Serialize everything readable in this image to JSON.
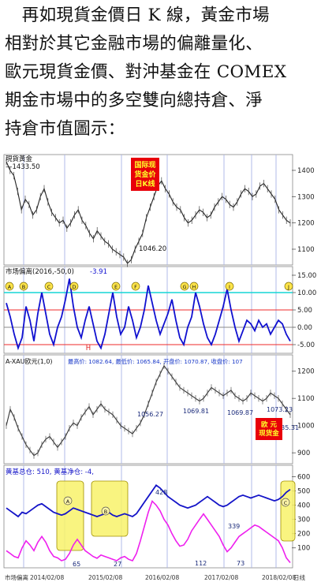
{
  "text": {
    "lines": [
      "　再如現貨金價日 K 線，黃金市場",
      "相對於其它金融市場的偏離量化、",
      "歐元現貨金價、對沖基金在 COMEX",
      "期金市場中的多空雙向總持倉、淨",
      "持倉市值圖示："
    ]
  },
  "chart_data": [
    {
      "type": "line",
      "title": "現貨黃金",
      "badge": "国际现货金价日K线",
      "badge_lines": [
        "国际现",
        "货金价",
        "日K线"
      ],
      "ylim": [
        1040,
        1460
      ],
      "yticks": [
        1400,
        1300,
        1200,
        1100
      ],
      "annotations": [
        {
          "label": "1433.50"
        },
        {
          "label": "1046.20"
        }
      ],
      "values": [
        1433,
        1400,
        1380,
        1320,
        1250,
        1290,
        1270,
        1230,
        1250,
        1300,
        1330,
        1280,
        1240,
        1220,
        1200,
        1210,
        1180,
        1200,
        1230,
        1250,
        1210,
        1190,
        1160,
        1140,
        1170,
        1150,
        1130,
        1120,
        1100,
        1090,
        1080,
        1070,
        1046,
        1060,
        1100,
        1130,
        1160,
        1220,
        1260,
        1300,
        1340,
        1360,
        1330,
        1310,
        1280,
        1260,
        1250,
        1220,
        1200,
        1210,
        1230,
        1250,
        1240,
        1220,
        1230,
        1260,
        1280,
        1300,
        1290,
        1270,
        1260,
        1280,
        1310,
        1330,
        1320,
        1300,
        1310,
        1340,
        1350,
        1330,
        1310,
        1290,
        1250,
        1230,
        1210,
        1200
      ]
    },
    {
      "type": "line",
      "title": "市场偏离(2016,-50,0)",
      "value_label": "-3.91",
      "ylim": [
        -7.5,
        17.5
      ],
      "yticks": [
        15.0,
        10.0,
        5.0,
        0.0,
        -5.0
      ],
      "ytick_labels": [
        "15.00",
        "10.00",
        "5.00",
        "0.00",
        "-5.00"
      ],
      "markers": [
        "A",
        "B",
        "C",
        "D",
        "E",
        "F",
        "G",
        "H",
        "I",
        "J"
      ],
      "bottom_marker": "H",
      "values": [
        7,
        3,
        -2,
        -6,
        -3,
        6,
        2,
        -4,
        4,
        10,
        4,
        -2,
        -5,
        0,
        3,
        8,
        14,
        6,
        0,
        -3,
        2,
        6,
        1,
        -4,
        -6,
        -2,
        4,
        10,
        3,
        -2,
        0,
        6,
        2,
        -3,
        0,
        5,
        12,
        7,
        2,
        -2,
        1,
        4,
        8,
        2,
        -3,
        -5,
        0,
        3,
        10,
        6,
        1,
        -3,
        -5,
        -2,
        2,
        6,
        11,
        5,
        0,
        -4,
        -1,
        2,
        1,
        -1,
        2,
        0,
        1,
        -2,
        0,
        2,
        1,
        -2,
        -4
      ]
    },
    {
      "type": "line",
      "title": "A-XAU欧元(1,0)",
      "ohlc_label": "最高价: 1082.64, 最低价: 1065.84, 开盘价: 1070.87, 收盘价: 107",
      "badge": "欧元现货金",
      "badge_lines": [
        "欧  元",
        "现货金"
      ],
      "ylim": [
        860,
        1260
      ],
      "yticks": [
        1200,
        1100,
        1000,
        900
      ],
      "annotations": [
        {
          "label": "1056.27"
        },
        {
          "label": "1069.81"
        },
        {
          "label": "1069.87"
        },
        {
          "label": "1073.23"
        },
        {
          "label": "1035.31"
        }
      ],
      "values": [
        1000,
        1060,
        1030,
        990,
        960,
        930,
        910,
        890,
        900,
        930,
        950,
        960,
        940,
        920,
        940,
        960,
        990,
        1010,
        1000,
        1030,
        1050,
        1070,
        1040,
        1060,
        1080,
        1060,
        1050,
        1040,
        1020,
        1000,
        990,
        980,
        970,
        990,
        1010,
        1040,
        1080,
        1120,
        1160,
        1190,
        1220,
        1200,
        1180,
        1160,
        1140,
        1130,
        1120,
        1110,
        1100,
        1090,
        1100,
        1120,
        1140,
        1130,
        1120,
        1110,
        1120,
        1130,
        1110,
        1100,
        1090,
        1100,
        1120,
        1110,
        1100,
        1090,
        1100,
        1120,
        1110,
        1100,
        1080,
        1060,
        1040
      ]
    },
    {
      "type": "line",
      "title": "黄基总仓: 510, 黄基净仓: -4,",
      "ylim": [
        -40,
        680
      ],
      "yticks": [
        600,
        500,
        400,
        300,
        200,
        100
      ],
      "markers": [
        "A",
        "B",
        "C"
      ],
      "annotations": [
        {
          "label": "65"
        },
        {
          "label": "27"
        },
        {
          "label": "428"
        },
        {
          "label": "112"
        },
        {
          "label": "339"
        },
        {
          "label": "73"
        }
      ],
      "x_labels": [
        "2014/02/08",
        "2015/02/08",
        "2016/02/08",
        "2017/02/08",
        "2018/02/08"
      ],
      "x_prefix": "市场偏离",
      "x_suffix": "日线",
      "series": [
        {
          "name": "黄基总仓",
          "values": [
            380,
            360,
            340,
            320,
            350,
            340,
            360,
            380,
            400,
            410,
            390,
            370,
            350,
            340,
            330,
            340,
            360,
            380,
            370,
            360,
            350,
            340,
            330,
            320,
            330,
            340,
            350,
            330,
            320,
            330,
            340,
            330,
            320,
            340,
            380,
            420,
            460,
            500,
            540,
            520,
            490,
            460,
            440,
            420,
            400,
            390,
            380,
            390,
            400,
            420,
            440,
            460,
            440,
            420,
            400,
            390,
            400,
            420,
            440,
            460,
            470,
            460,
            450,
            460,
            470,
            460,
            450,
            440,
            430,
            440,
            460,
            490,
            510
          ]
        },
        {
          "name": "黄基净仓",
          "values": [
            80,
            60,
            40,
            30,
            100,
            150,
            120,
            80,
            140,
            180,
            140,
            80,
            40,
            30,
            10,
            20,
            60,
            120,
            160,
            120,
            80,
            60,
            40,
            27,
            50,
            40,
            30,
            20,
            10,
            30,
            40,
            20,
            10,
            60,
            150,
            250,
            350,
            428,
            400,
            360,
            300,
            260,
            200,
            150,
            112,
            120,
            160,
            220,
            260,
            300,
            339,
            300,
            260,
            220,
            180,
            120,
            73,
            100,
            140,
            180,
            200,
            220,
            240,
            260,
            250,
            230,
            210,
            190,
            170,
            150,
            100,
            30,
            -4
          ]
        }
      ]
    }
  ]
}
